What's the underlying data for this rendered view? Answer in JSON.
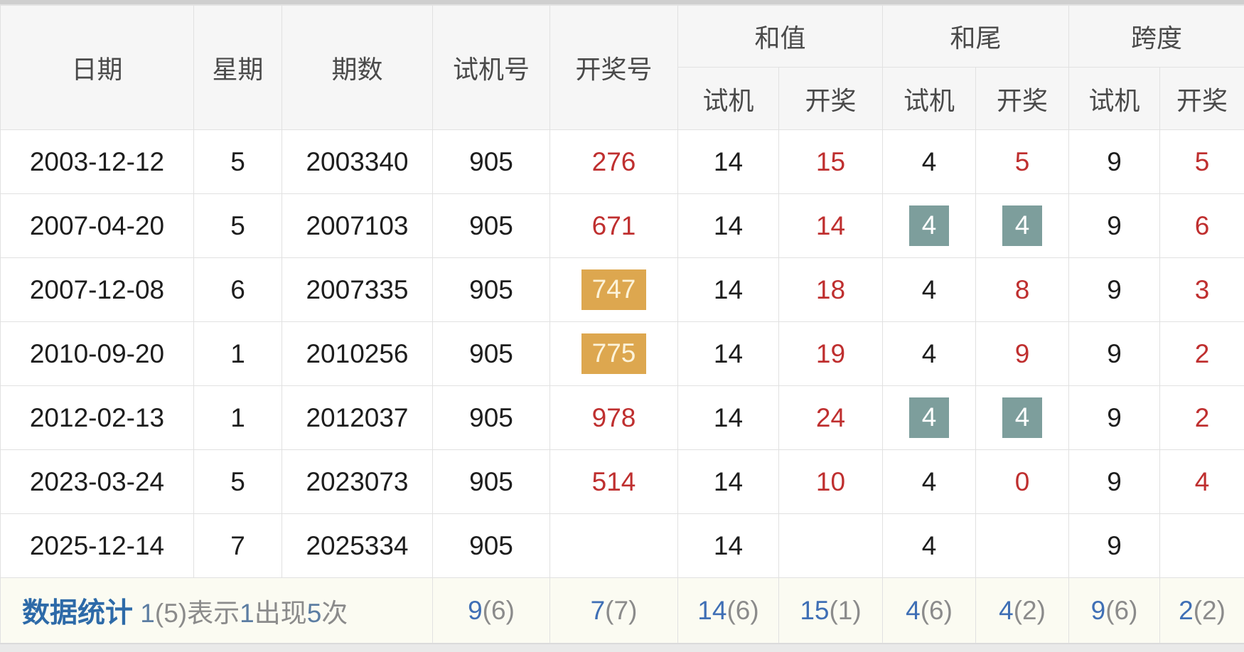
{
  "colors": {
    "red_text": "#bf2f2f",
    "black_text": "#1d1d1d",
    "header_text": "#4a4a4a",
    "teal_highlight_bg": "#7d9e9c",
    "orange_highlight_bg": "#dda74f",
    "footer_label_blue": "#2d6aa8",
    "stat_number_blue": "#3f6fb5",
    "stat_count_gray": "#8b8b8b",
    "header_bg": "#f6f6f6",
    "footer_bg": "#fbfbf2",
    "border": "#e1e1e1"
  },
  "table": {
    "headers": {
      "date": "日期",
      "weekday": "星期",
      "period": "期数",
      "test_number": "试机号",
      "draw_number": "开奖号",
      "groups": [
        {
          "label": "和值"
        },
        {
          "label": "和尾"
        },
        {
          "label": "跨度"
        }
      ],
      "sub_test": "试机",
      "sub_draw": "开奖"
    },
    "rows": [
      {
        "date": "2003-12-12",
        "weekday": "5",
        "period": "2003340",
        "test_number": "905",
        "draw_number": "276",
        "draw_hl": false,
        "sum_test": "14",
        "sum_draw": "15",
        "tail_test": "4",
        "tail_test_hl": false,
        "tail_draw": "5",
        "tail_draw_hl": false,
        "span_test": "9",
        "span_draw": "5"
      },
      {
        "date": "2007-04-20",
        "weekday": "5",
        "period": "2007103",
        "test_number": "905",
        "draw_number": "671",
        "draw_hl": false,
        "sum_test": "14",
        "sum_draw": "14",
        "tail_test": "4",
        "tail_test_hl": true,
        "tail_draw": "4",
        "tail_draw_hl": true,
        "span_test": "9",
        "span_draw": "6"
      },
      {
        "date": "2007-12-08",
        "weekday": "6",
        "period": "2007335",
        "test_number": "905",
        "draw_number": "747",
        "draw_hl": true,
        "sum_test": "14",
        "sum_draw": "18",
        "tail_test": "4",
        "tail_test_hl": false,
        "tail_draw": "8",
        "tail_draw_hl": false,
        "span_test": "9",
        "span_draw": "3"
      },
      {
        "date": "2010-09-20",
        "weekday": "1",
        "period": "2010256",
        "test_number": "905",
        "draw_number": "775",
        "draw_hl": true,
        "sum_test": "14",
        "sum_draw": "19",
        "tail_test": "4",
        "tail_test_hl": false,
        "tail_draw": "9",
        "tail_draw_hl": false,
        "span_test": "9",
        "span_draw": "2"
      },
      {
        "date": "2012-02-13",
        "weekday": "1",
        "period": "2012037",
        "test_number": "905",
        "draw_number": "978",
        "draw_hl": false,
        "sum_test": "14",
        "sum_draw": "24",
        "tail_test": "4",
        "tail_test_hl": true,
        "tail_draw": "4",
        "tail_draw_hl": true,
        "span_test": "9",
        "span_draw": "2"
      },
      {
        "date": "2023-03-24",
        "weekday": "5",
        "period": "2023073",
        "test_number": "905",
        "draw_number": "514",
        "draw_hl": false,
        "sum_test": "14",
        "sum_draw": "10",
        "tail_test": "4",
        "tail_test_hl": false,
        "tail_draw": "0",
        "tail_draw_hl": false,
        "span_test": "9",
        "span_draw": "4"
      },
      {
        "date": "2025-12-14",
        "weekday": "7",
        "period": "2025334",
        "test_number": "905",
        "draw_number": "",
        "draw_hl": false,
        "sum_test": "14",
        "sum_draw": "",
        "tail_test": "4",
        "tail_test_hl": false,
        "tail_draw": "",
        "tail_draw_hl": false,
        "span_test": "9",
        "span_draw": ""
      }
    ],
    "footer": {
      "label": "数据统计",
      "note_parts": [
        {
          "text": "1",
          "type": "num"
        },
        {
          "text": "(5)",
          "type": "text"
        },
        {
          "text": "表示",
          "type": "text"
        },
        {
          "text": "1",
          "type": "num"
        },
        {
          "text": "出现",
          "type": "text"
        },
        {
          "text": "5",
          "type": "num"
        },
        {
          "text": "次",
          "type": "text"
        }
      ],
      "stats": [
        {
          "num": "9",
          "count": "(6)"
        },
        {
          "num": "7",
          "count": "(7)"
        },
        {
          "num": "14",
          "count": "(6)"
        },
        {
          "num": "15",
          "count": "(1)"
        },
        {
          "num": "4",
          "count": "(6)"
        },
        {
          "num": "4",
          "count": "(2)"
        },
        {
          "num": "9",
          "count": "(6)"
        },
        {
          "num": "2",
          "count": "(2)"
        }
      ]
    }
  }
}
